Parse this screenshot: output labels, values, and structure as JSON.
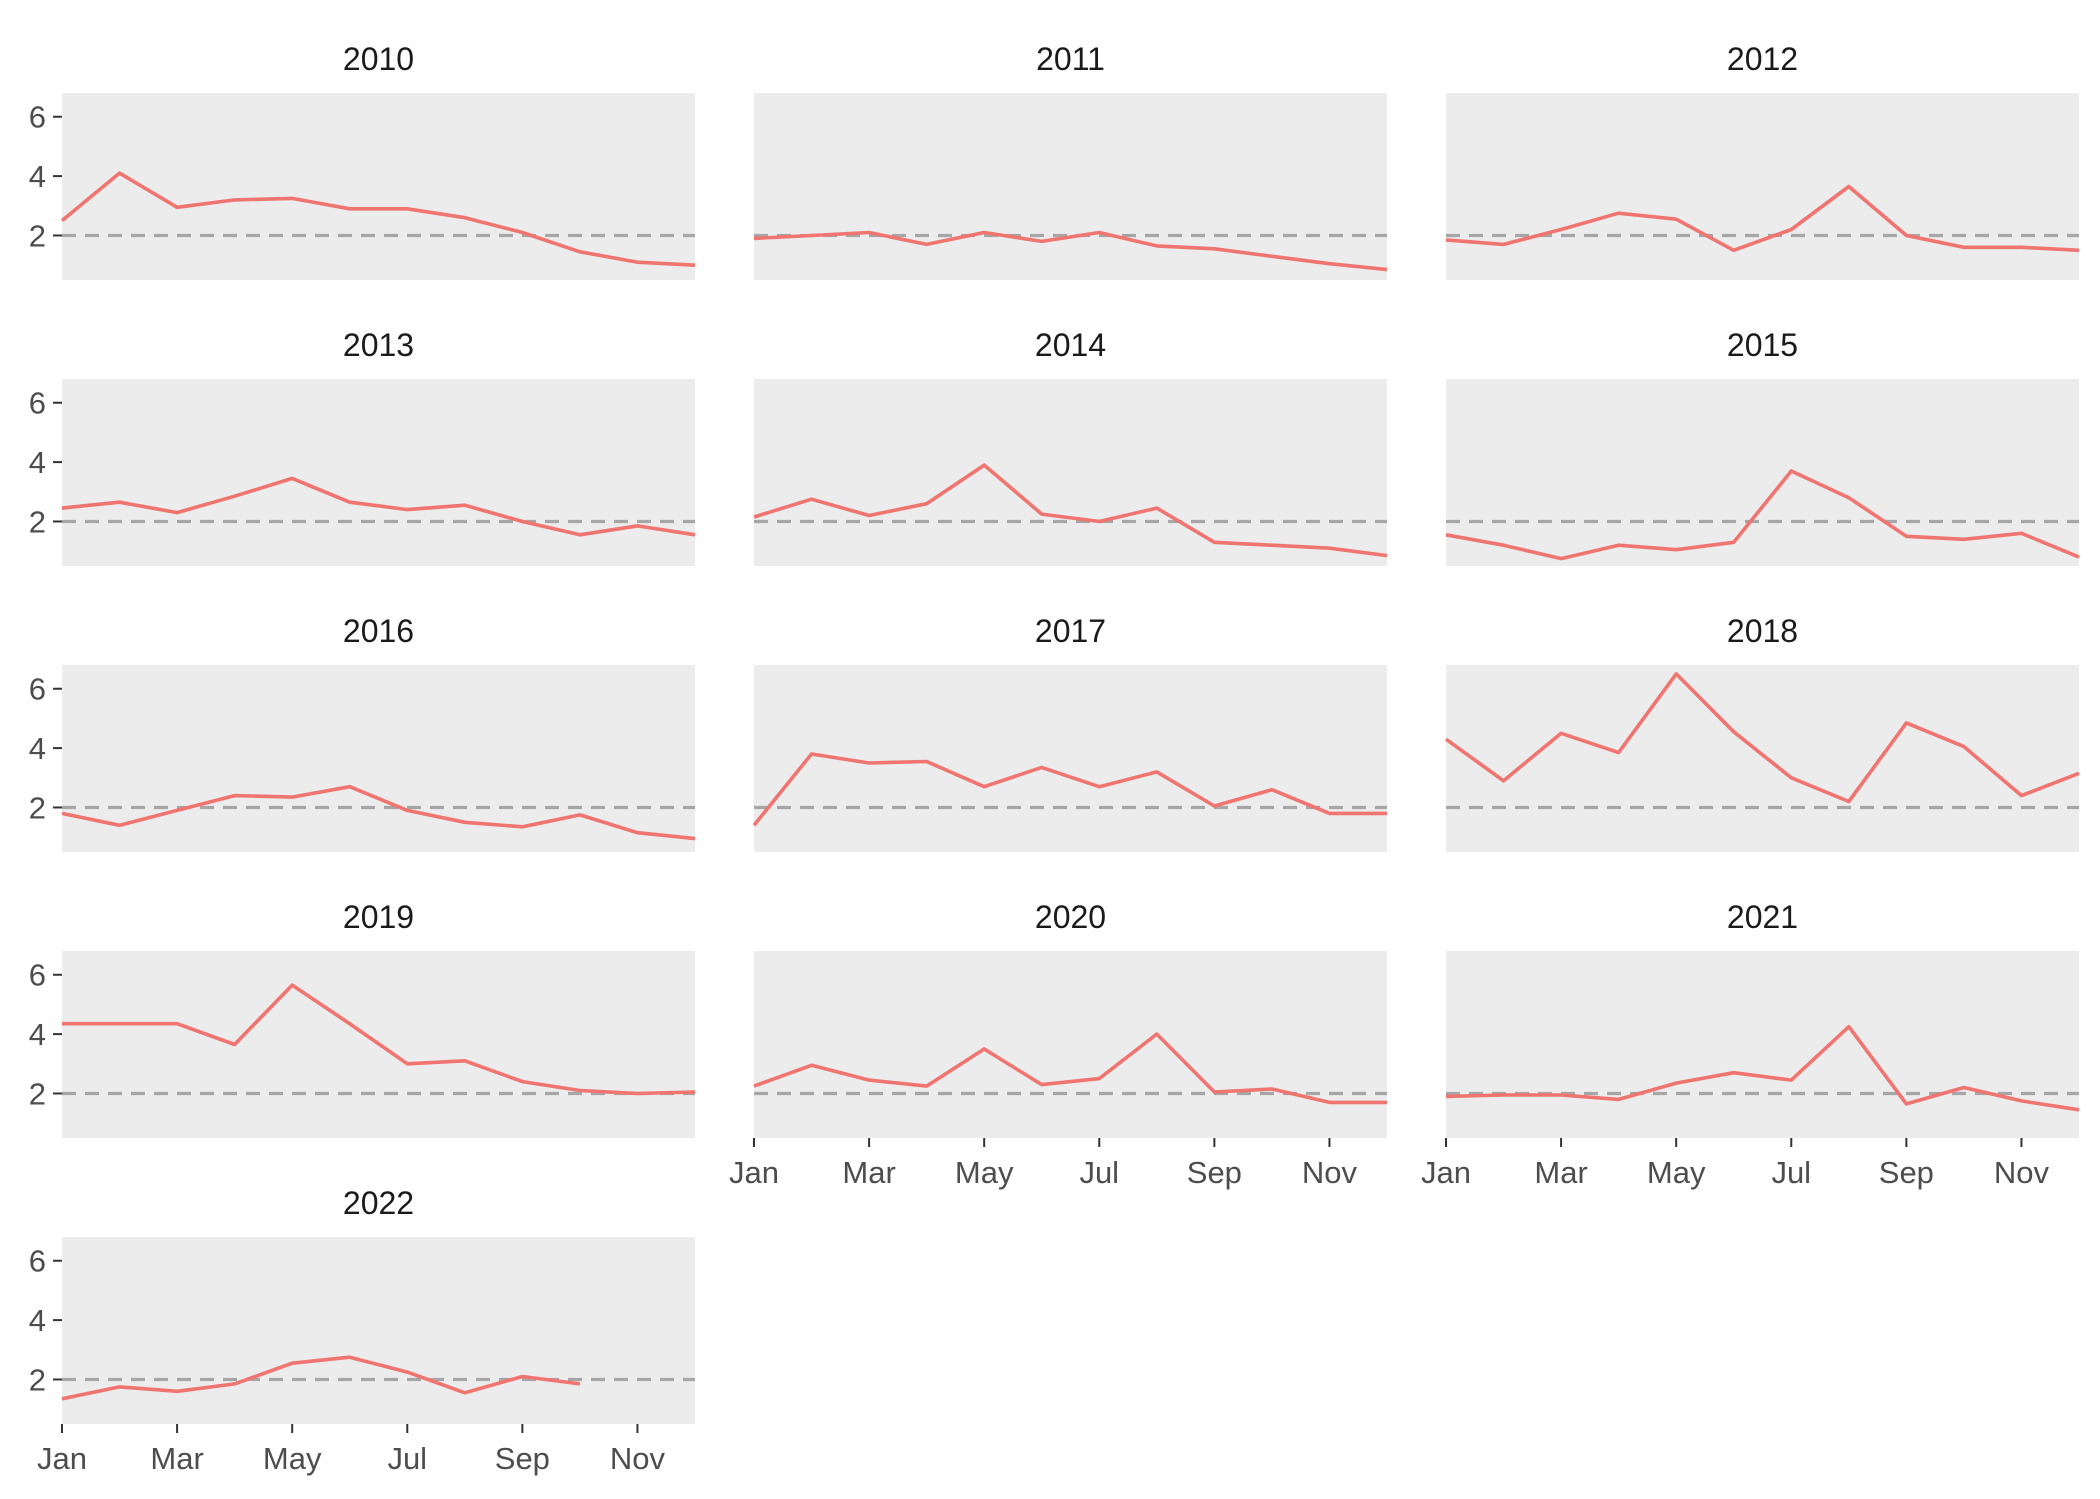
{
  "chart_data": {
    "type": "line",
    "facet_by": "year",
    "x_ticks": [
      "Jan",
      "Mar",
      "May",
      "Jul",
      "Sep",
      "Nov"
    ],
    "x_categories": [
      "Jan",
      "Feb",
      "Mar",
      "Apr",
      "May",
      "Jun",
      "Jul",
      "Aug",
      "Sep",
      "Oct",
      "Nov",
      "Dec"
    ],
    "y_ticks": [
      2,
      4,
      6
    ],
    "ylim": [
      0.5,
      6.8
    ],
    "reference_line": {
      "y": 2,
      "style": "dashed",
      "color": "#a6a6a6"
    },
    "line_color": "#f07470",
    "panel_background": "#ececec",
    "legend": "none",
    "grid": false,
    "series": [
      {
        "facet": "2010",
        "values": [
          2.5,
          4.1,
          2.95,
          3.2,
          3.25,
          2.9,
          2.9,
          2.6,
          2.1,
          1.45,
          1.1,
          1.0
        ]
      },
      {
        "facet": "2011",
        "values": [
          1.9,
          2.0,
          2.1,
          1.7,
          2.1,
          1.8,
          2.1,
          1.65,
          1.55,
          1.3,
          1.05,
          0.85
        ]
      },
      {
        "facet": "2012",
        "values": [
          1.85,
          1.7,
          2.2,
          2.75,
          2.55,
          1.5,
          2.2,
          3.65,
          2.0,
          1.6,
          1.6,
          1.5
        ]
      },
      {
        "facet": "2013",
        "values": [
          2.45,
          2.65,
          2.3,
          2.85,
          3.45,
          2.65,
          2.4,
          2.55,
          2.0,
          1.55,
          1.85,
          1.55
        ]
      },
      {
        "facet": "2014",
        "values": [
          2.15,
          2.75,
          2.2,
          2.6,
          3.9,
          2.25,
          2.0,
          2.45,
          1.3,
          1.2,
          1.1,
          0.85
        ]
      },
      {
        "facet": "2015",
        "values": [
          1.55,
          1.2,
          0.75,
          1.2,
          1.05,
          1.3,
          3.7,
          2.8,
          1.5,
          1.4,
          1.6,
          0.8
        ]
      },
      {
        "facet": "2016",
        "values": [
          1.8,
          1.4,
          1.9,
          2.4,
          2.35,
          2.7,
          1.9,
          1.5,
          1.35,
          1.75,
          1.15,
          0.95
        ]
      },
      {
        "facet": "2017",
        "values": [
          1.4,
          3.8,
          3.5,
          3.55,
          2.7,
          3.35,
          2.7,
          3.2,
          2.05,
          2.6,
          1.8,
          1.8
        ]
      },
      {
        "facet": "2018",
        "values": [
          4.3,
          2.9,
          4.5,
          3.85,
          6.5,
          4.55,
          3.0,
          2.2,
          4.85,
          4.05,
          2.4,
          3.15
        ]
      },
      {
        "facet": "2019",
        "values": [
          4.35,
          4.35,
          4.35,
          3.65,
          5.65,
          4.35,
          3.0,
          3.1,
          2.4,
          2.1,
          2.0,
          2.05
        ]
      },
      {
        "facet": "2020",
        "values": [
          2.25,
          2.95,
          2.45,
          2.25,
          3.5,
          2.3,
          2.5,
          4.0,
          2.05,
          2.15,
          1.7,
          1.7
        ]
      },
      {
        "facet": "2021",
        "values": [
          1.9,
          1.95,
          1.95,
          1.8,
          2.35,
          2.7,
          2.45,
          4.25,
          1.65,
          2.2,
          1.75,
          1.45
        ]
      },
      {
        "facet": "2022",
        "values": [
          1.35,
          1.75,
          1.6,
          1.85,
          2.55,
          2.75,
          2.25,
          1.55,
          2.1,
          1.85
        ]
      }
    ]
  }
}
